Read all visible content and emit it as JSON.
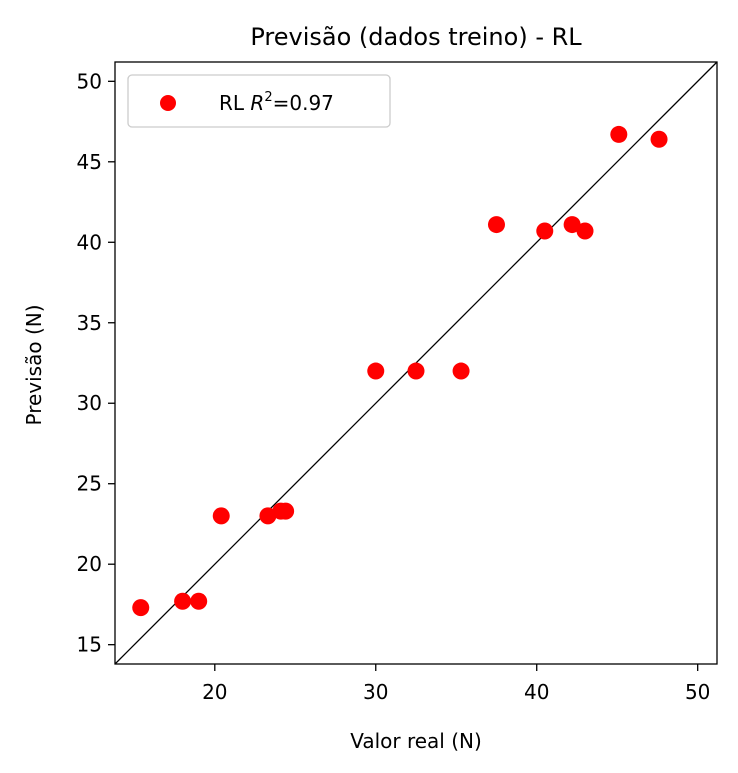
{
  "chart_data": {
    "type": "scatter",
    "title": "Previsão (dados treino) - RL",
    "xlabel": "Valor real (N)",
    "ylabel": "Previsão (N)",
    "xlim": [
      13.8,
      51.2
    ],
    "ylim": [
      13.8,
      51.2
    ],
    "x_ticks": [
      20,
      30,
      40,
      50
    ],
    "y_ticks": [
      15,
      20,
      25,
      30,
      35,
      40,
      45,
      50
    ],
    "grid": false,
    "legend_position": "top-left",
    "reference_line": {
      "from": [
        13.8,
        13.8
      ],
      "to": [
        51.2,
        51.2
      ],
      "color": "#000000"
    },
    "series": [
      {
        "name": "RL",
        "legend_r2": "0.97",
        "color": "#ff0000",
        "x": [
          15.4,
          18.0,
          19.0,
          20.4,
          23.3,
          24.1,
          24.4,
          30.0,
          32.5,
          35.3,
          37.5,
          40.5,
          42.2,
          43.0,
          45.1,
          47.6
        ],
        "y": [
          17.3,
          17.7,
          17.7,
          23.0,
          23.0,
          23.3,
          23.3,
          32.0,
          32.0,
          32.0,
          41.1,
          40.7,
          41.1,
          40.7,
          46.7,
          46.4
        ]
      }
    ]
  }
}
